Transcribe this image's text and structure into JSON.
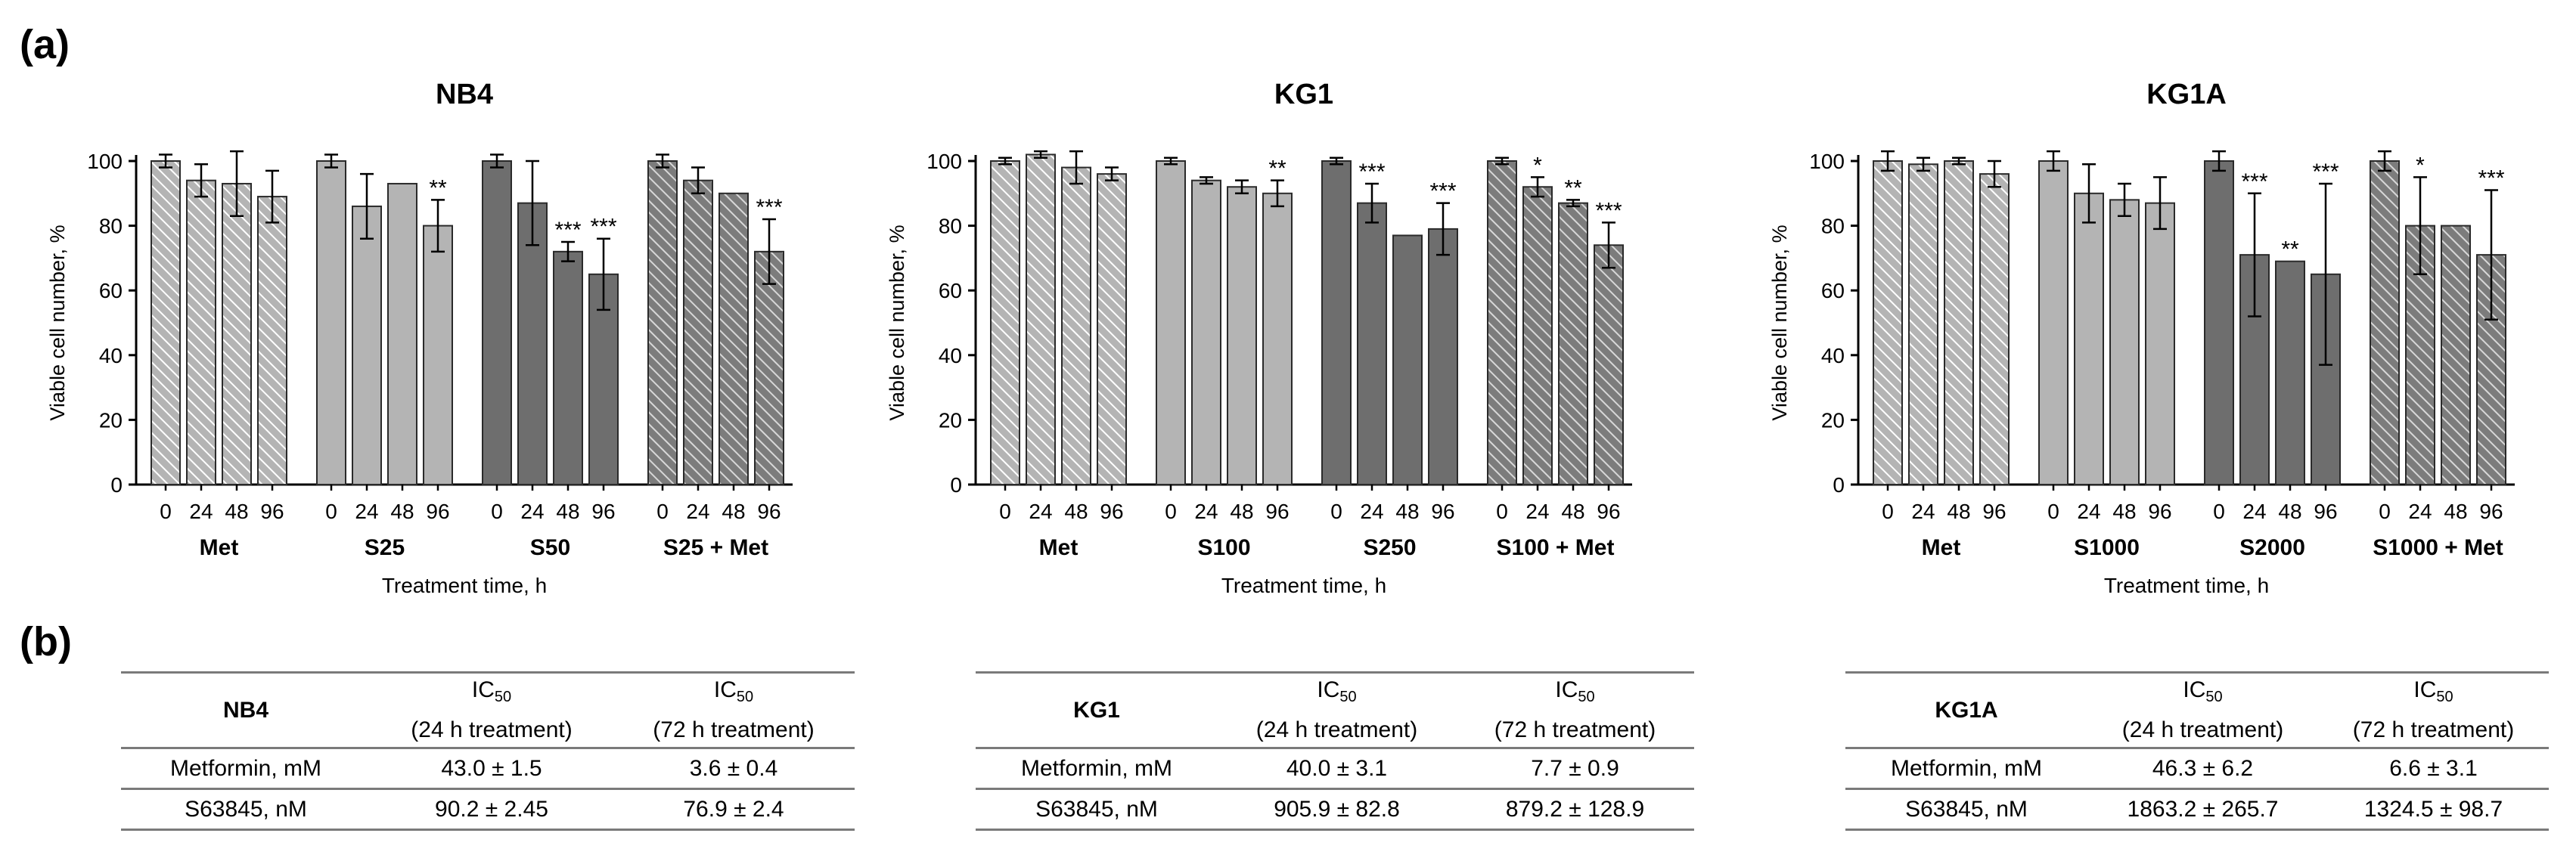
{
  "panel_labels": {
    "a": "(a)",
    "b": "(b)"
  },
  "chart_common": {
    "ylabel": "Viable cell number, %",
    "xlabel": "Treatment time, h",
    "y_ticks": [
      "0",
      "20",
      "40",
      "60",
      "80",
      "100"
    ],
    "time_labels": [
      "0",
      "24",
      "48",
      "96"
    ],
    "colors": {
      "light_gray": "#b4b4b4",
      "mid_gray": "#9a9a9a",
      "dark_gray": "#6e6e6e",
      "hatch": "#ffffff"
    }
  },
  "chart_data": [
    {
      "type": "bar",
      "title": "NB4",
      "ylim": [
        0,
        100
      ],
      "groups": [
        {
          "name": "Met",
          "style": "hatch",
          "values": [
            100,
            94,
            93,
            89
          ],
          "errors": [
            2,
            5,
            10,
            8
          ],
          "sig": [
            "",
            "",
            "",
            ""
          ]
        },
        {
          "name": "S25",
          "style": "light",
          "values": [
            100,
            86,
            93,
            80
          ],
          "errors": [
            2,
            10,
            0,
            8
          ],
          "sig": [
            "",
            "",
            "",
            "**"
          ]
        },
        {
          "name": "S50",
          "style": "dark",
          "values": [
            100,
            87,
            72,
            65
          ],
          "errors": [
            2,
            13,
            3,
            11
          ],
          "sig": [
            "",
            "",
            "***",
            "***"
          ]
        },
        {
          "name": "S25 + Met",
          "style": "darkhatch",
          "values": [
            100,
            94,
            90,
            72
          ],
          "errors": [
            2,
            4,
            0,
            10
          ],
          "sig": [
            "",
            "",
            "",
            "***"
          ]
        }
      ]
    },
    {
      "type": "bar",
      "title": "KG1",
      "ylim": [
        0,
        100
      ],
      "groups": [
        {
          "name": "Met",
          "style": "hatch",
          "values": [
            100,
            102,
            98,
            96
          ],
          "errors": [
            1,
            1,
            5,
            2
          ],
          "sig": [
            "",
            "",
            "",
            ""
          ]
        },
        {
          "name": "S100",
          "style": "light",
          "values": [
            100,
            94,
            92,
            90
          ],
          "errors": [
            1,
            1,
            2,
            4
          ],
          "sig": [
            "",
            "",
            "",
            "**"
          ]
        },
        {
          "name": "S250",
          "style": "dark",
          "values": [
            100,
            87,
            77,
            79
          ],
          "errors": [
            1,
            6,
            0,
            8
          ],
          "sig": [
            "",
            "***",
            "",
            "***"
          ]
        },
        {
          "name": "S100 + Met",
          "style": "darkhatch",
          "values": [
            100,
            92,
            87,
            74
          ],
          "errors": [
            1,
            3,
            1,
            7
          ],
          "sig": [
            "",
            "*",
            "**",
            "***"
          ]
        }
      ]
    },
    {
      "type": "bar",
      "title": "KG1A",
      "ylim": [
        0,
        100
      ],
      "groups": [
        {
          "name": "Met",
          "style": "hatch",
          "values": [
            100,
            99,
            100,
            96
          ],
          "errors": [
            3,
            2,
            1,
            4
          ],
          "sig": [
            "",
            "",
            "",
            ""
          ]
        },
        {
          "name": "S1000",
          "style": "light",
          "values": [
            100,
            90,
            88,
            87
          ],
          "errors": [
            3,
            9,
            5,
            8
          ],
          "sig": [
            "",
            "",
            "",
            ""
          ]
        },
        {
          "name": "S2000",
          "style": "dark",
          "values": [
            100,
            71,
            69,
            65
          ],
          "errors": [
            3,
            19,
            0,
            28
          ],
          "sig": [
            "",
            "***",
            "**",
            "***"
          ]
        },
        {
          "name": "S1000 + Met",
          "style": "darkhatch",
          "values": [
            100,
            80,
            80,
            71
          ],
          "errors": [
            3,
            15,
            0,
            20
          ],
          "sig": [
            "",
            "*",
            "",
            "***"
          ]
        }
      ]
    }
  ],
  "tables": [
    {
      "name": "NB4",
      "col1": {
        "main": "IC",
        "sub": "50",
        "paren": "(24 h treatment)"
      },
      "col2": {
        "main": "IC",
        "sub": "50",
        "paren": "(72 h treatment)"
      },
      "rows": [
        {
          "label": "Metformin, mM",
          "v24": "43.0 ± 1.5",
          "v72": "3.6 ± 0.4"
        },
        {
          "label": "S63845, nM",
          "v24": "90.2 ± 2.45",
          "v72": "76.9 ± 2.4"
        }
      ]
    },
    {
      "name": "KG1",
      "col1": {
        "main": "IC",
        "sub": "50",
        "paren": "(24 h treatment)"
      },
      "col2": {
        "main": "IC",
        "sub": "50",
        "paren": "(72 h treatment)"
      },
      "rows": [
        {
          "label": "Metformin, mM",
          "v24": "40.0 ± 3.1",
          "v72": "7.7 ± 0.9"
        },
        {
          "label": "S63845, nM",
          "v24": "905.9 ± 82.8",
          "v72": "879.2 ± 128.9"
        }
      ]
    },
    {
      "name": "KG1A",
      "col1": {
        "main": "IC",
        "sub": "50",
        "paren": "(24 h treatment)"
      },
      "col2": {
        "main": "IC",
        "sub": "50",
        "paren": "(72 h treatment)"
      },
      "rows": [
        {
          "label": "Metformin, mM",
          "v24": "46.3 ± 6.2",
          "v72": "6.6 ± 3.1"
        },
        {
          "label": "S63845, nM",
          "v24": "1863.2 ± 265.7",
          "v72": "1324.5 ± 98.7"
        }
      ]
    }
  ]
}
